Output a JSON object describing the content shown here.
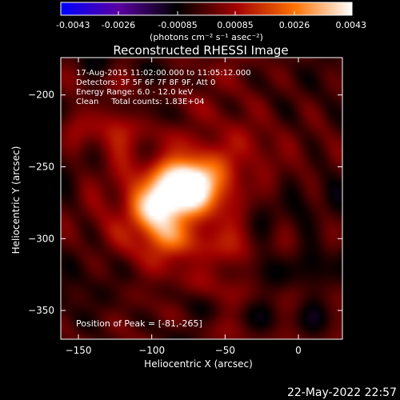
{
  "colorbar": {
    "ticks": [
      "-0.0043",
      "-0.0026",
      "-0.00085",
      "0.00085",
      "0.0026",
      "0.0043"
    ],
    "min": -0.0043,
    "max": 0.0043,
    "units": "(photons cm⁻² s⁻¹ asec⁻²)",
    "colors": [
      "#0000ff",
      "#5a00a0",
      "#000000",
      "#a00000",
      "#ff7000",
      "#ffffff"
    ]
  },
  "chart_data": {
    "type": "heatmap",
    "title": "Reconstructed RHESSI Image",
    "xlabel": "Heliocentric X (arcsec)",
    "ylabel": "Heliocentric Y (arcsec)",
    "xlim": [
      -162,
      30
    ],
    "ylim": [
      -370,
      -174
    ],
    "xticks": [
      -150,
      -100,
      -50,
      0
    ],
    "yticks": [
      -350,
      -300,
      -250,
      -200
    ],
    "xtick_labels": [
      "−150",
      "−100",
      "−50",
      "0"
    ],
    "ytick_labels": [
      "−350",
      "−300",
      "−250",
      "−200"
    ],
    "annotations": [
      "17-Aug-2015 11:02:00.000 to 11:05:12.000",
      "Detectors: 3F 5F 6F 7F 8F 9F, Att 0",
      "Energy Range: 6.0 - 12.0 keV",
      "Clean     Total counts: 1.83E+04"
    ],
    "peak_text": "Position of Peak = [-81,-265]",
    "peak": [
      -81,
      -265
    ],
    "sources": [
      {
        "x": -81,
        "y": -265,
        "amp": 0.0043,
        "sigma": 14
      },
      {
        "x": -98,
        "y": -278,
        "amp": 0.003,
        "sigma": 11
      },
      {
        "x": -65,
        "y": -258,
        "amp": 0.0024,
        "sigma": 12
      },
      {
        "x": -92,
        "y": -300,
        "amp": 0.002,
        "sigma": 12
      },
      {
        "x": -55,
        "y": -290,
        "amp": 0.0012,
        "sigma": 14
      },
      {
        "x": -118,
        "y": -240,
        "amp": 0.001,
        "sigma": 16
      },
      {
        "x": -140,
        "y": -215,
        "amp": 0.0008,
        "sigma": 16
      },
      {
        "x": -60,
        "y": -320,
        "amp": 0.0009,
        "sigma": 14
      },
      {
        "x": -120,
        "y": -295,
        "amp": 0.0009,
        "sigma": 16
      },
      {
        "x": -40,
        "y": -235,
        "amp": 0.0008,
        "sigma": 14
      }
    ]
  },
  "footer": {
    "date": "22-May-2022 22:57"
  }
}
